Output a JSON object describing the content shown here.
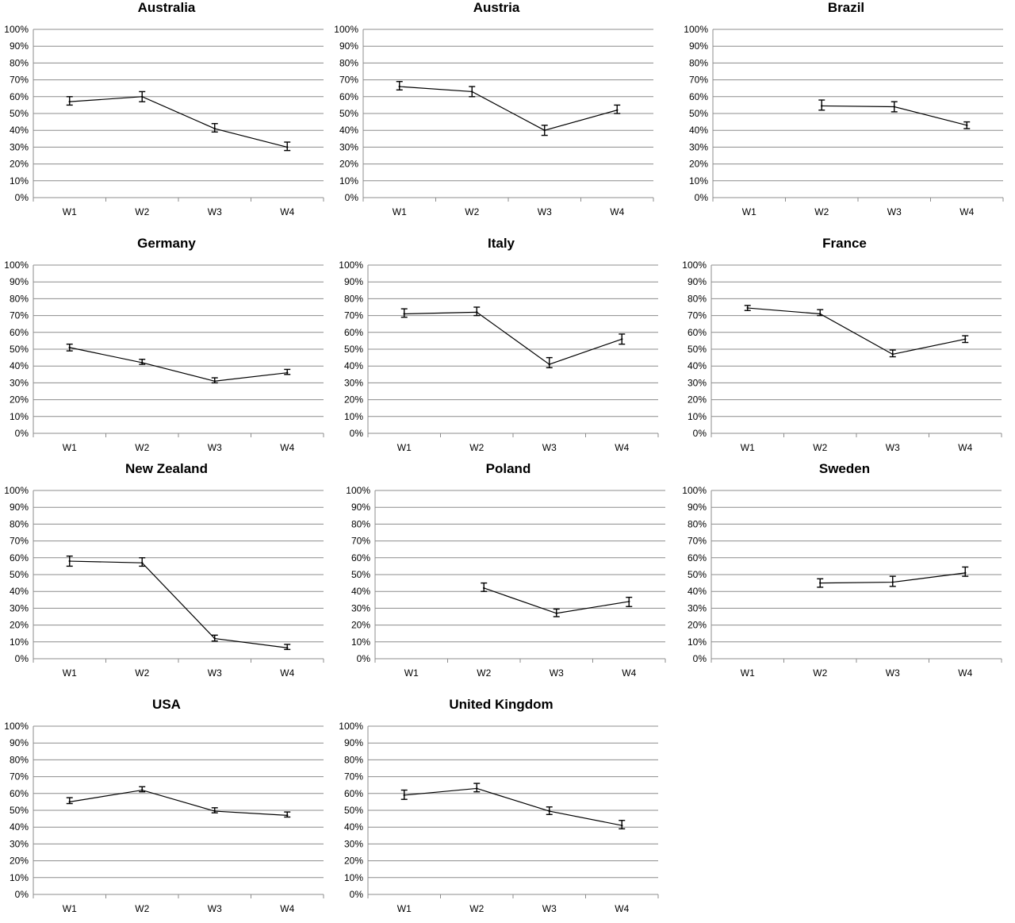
{
  "chart_data": [
    {
      "type": "line",
      "title": "Australia",
      "categories": [
        "W1",
        "W2",
        "W3",
        "W4"
      ],
      "ylim": [
        0,
        100
      ],
      "y_ticks": [
        "0%",
        "10%",
        "20%",
        "30%",
        "40%",
        "50%",
        "60%",
        "70%",
        "80%",
        "90%",
        "100%"
      ],
      "values": [
        57,
        60,
        41,
        30
      ],
      "err_low": [
        55,
        57,
        39,
        28
      ],
      "err_high": [
        60,
        63,
        44,
        33
      ]
    },
    {
      "type": "line",
      "title": "Austria",
      "categories": [
        "W1",
        "W2",
        "W3",
        "W4"
      ],
      "ylim": [
        0,
        100
      ],
      "y_ticks": [
        "0%",
        "10%",
        "20%",
        "30%",
        "40%",
        "50%",
        "60%",
        "70%",
        "80%",
        "90%",
        "100%"
      ],
      "values": [
        66,
        63,
        40,
        52
      ],
      "err_low": [
        64,
        60,
        37,
        50
      ],
      "err_high": [
        69,
        66,
        43,
        55
      ]
    },
    {
      "type": "line",
      "title": "Brazil",
      "categories": [
        "W1",
        "W2",
        "W3",
        "W4"
      ],
      "ylim": [
        0,
        100
      ],
      "y_ticks": [
        "0%",
        "10%",
        "20%",
        "30%",
        "40%",
        "50%",
        "60%",
        "70%",
        "80%",
        "90%",
        "100%"
      ],
      "values": [
        null,
        54.5,
        54,
        43
      ],
      "err_low": [
        null,
        52,
        51,
        41
      ],
      "err_high": [
        null,
        58,
        57,
        45
      ]
    },
    {
      "type": "line",
      "title": "Germany",
      "categories": [
        "W1",
        "W2",
        "W3",
        "W4"
      ],
      "ylim": [
        0,
        100
      ],
      "y_ticks": [
        "0%",
        "10%",
        "20%",
        "30%",
        "40%",
        "50%",
        "60%",
        "70%",
        "80%",
        "90%",
        "100%"
      ],
      "values": [
        51,
        42,
        31,
        36
      ],
      "err_low": [
        49,
        41,
        30,
        35
      ],
      "err_high": [
        53,
        44,
        33,
        38
      ]
    },
    {
      "type": "line",
      "title": "Italy",
      "categories": [
        "W1",
        "W2",
        "W3",
        "W4"
      ],
      "ylim": [
        0,
        100
      ],
      "y_ticks": [
        "0%",
        "10%",
        "20%",
        "30%",
        "40%",
        "50%",
        "60%",
        "70%",
        "80%",
        "90%",
        "100%"
      ],
      "values": [
        71,
        72,
        41,
        56
      ],
      "err_low": [
        69,
        70,
        39,
        53
      ],
      "err_high": [
        74,
        75,
        45,
        59
      ]
    },
    {
      "type": "line",
      "title": "France",
      "categories": [
        "W1",
        "W2",
        "W3",
        "W4"
      ],
      "ylim": [
        0,
        100
      ],
      "y_ticks": [
        "0%",
        "10%",
        "20%",
        "30%",
        "40%",
        "50%",
        "60%",
        "70%",
        "80%",
        "90%",
        "100%"
      ],
      "values": [
        74.5,
        71,
        47,
        56
      ],
      "err_low": [
        73,
        70,
        45.5,
        54
      ],
      "err_high": [
        76,
        73.5,
        49.5,
        58
      ]
    },
    {
      "type": "line",
      "title": "New Zealand",
      "categories": [
        "W1",
        "W2",
        "W3",
        "W4"
      ],
      "ylim": [
        0,
        100
      ],
      "y_ticks": [
        "0%",
        "10%",
        "20%",
        "30%",
        "40%",
        "50%",
        "60%",
        "70%",
        "80%",
        "90%",
        "100%"
      ],
      "values": [
        58,
        57,
        12,
        6.5
      ],
      "err_low": [
        55,
        55,
        10.5,
        5.5
      ],
      "err_high": [
        61,
        60,
        14,
        8.5
      ]
    },
    {
      "type": "line",
      "title": "Poland",
      "categories": [
        "W1",
        "W2",
        "W3",
        "W4"
      ],
      "ylim": [
        0,
        100
      ],
      "y_ticks": [
        "0%",
        "10%",
        "20%",
        "30%",
        "40%",
        "50%",
        "60%",
        "70%",
        "80%",
        "90%",
        "100%"
      ],
      "values": [
        null,
        42,
        27,
        34
      ],
      "err_low": [
        null,
        40,
        25,
        31
      ],
      "err_high": [
        null,
        45,
        29.5,
        36.5
      ]
    },
    {
      "type": "line",
      "title": "Sweden",
      "categories": [
        "W1",
        "W2",
        "W3",
        "W4"
      ],
      "ylim": [
        0,
        100
      ],
      "y_ticks": [
        "0%",
        "10%",
        "20%",
        "30%",
        "40%",
        "50%",
        "60%",
        "70%",
        "80%",
        "90%",
        "100%"
      ],
      "values": [
        null,
        45,
        45.5,
        51
      ],
      "err_low": [
        null,
        42.5,
        43,
        49
      ],
      "err_high": [
        null,
        47.5,
        49,
        54.5
      ]
    },
    {
      "type": "line",
      "title": "USA",
      "categories": [
        "W1",
        "W2",
        "W3",
        "W4"
      ],
      "ylim": [
        0,
        100
      ],
      "y_ticks": [
        "0%",
        "10%",
        "20%",
        "30%",
        "40%",
        "50%",
        "60%",
        "70%",
        "80%",
        "90%",
        "100%"
      ],
      "values": [
        55,
        62,
        49.5,
        47
      ],
      "err_low": [
        54,
        61,
        48.5,
        46
      ],
      "err_high": [
        57.5,
        64,
        51.5,
        49
      ]
    },
    {
      "type": "line",
      "title": "United Kingdom",
      "categories": [
        "W1",
        "W2",
        "W3",
        "W4"
      ],
      "ylim": [
        0,
        100
      ],
      "y_ticks": [
        "0%",
        "10%",
        "20%",
        "30%",
        "40%",
        "50%",
        "60%",
        "70%",
        "80%",
        "90%",
        "100%"
      ],
      "values": [
        59,
        63,
        49.5,
        41
      ],
      "err_low": [
        56.5,
        61,
        47.5,
        39
      ],
      "err_high": [
        62,
        66,
        52,
        44
      ]
    }
  ]
}
